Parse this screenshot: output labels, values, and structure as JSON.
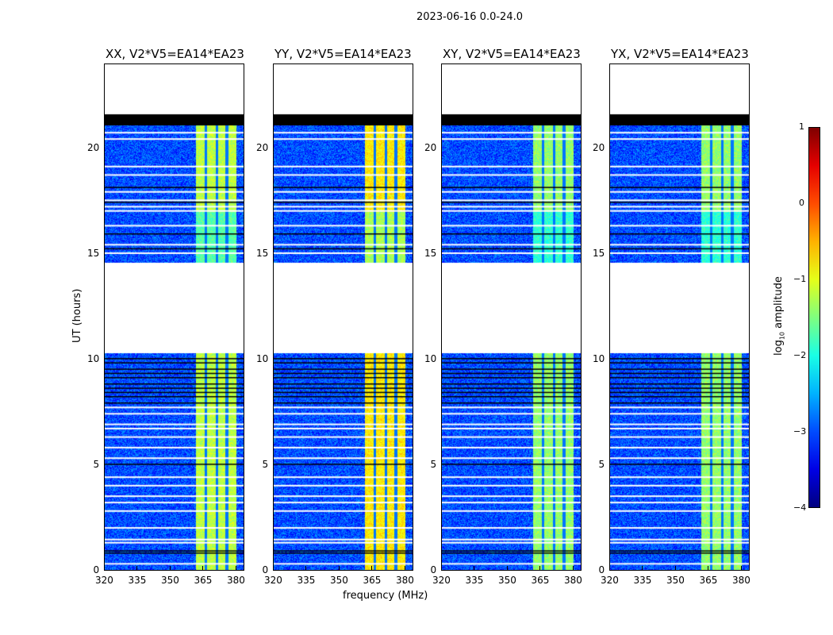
{
  "suptitle": "2023-06-16 0.0-24.0",
  "chart_data": {
    "type": "heatmap",
    "title": "2023-06-16 0.0-24.0",
    "xlabel": "frequency (MHz)",
    "ylabel": "UT (hours)",
    "xlim": [
      320,
      384
    ],
    "ylim": [
      0,
      24
    ],
    "xticks": [
      "320",
      "335",
      "350",
      "365",
      "380"
    ],
    "yticks": [
      "0",
      "5",
      "10",
      "15",
      "20"
    ],
    "panels": [
      {
        "title": "XX, V2*V5=EA14*EA23",
        "band_level": -1.2
      },
      {
        "title": "YY, V2*V5=EA14*EA23",
        "band_level": -0.8
      },
      {
        "title": "XY, V2*V5=EA14*EA23",
        "band_level": -1.4
      },
      {
        "title": "YX, V2*V5=EA14*EA23",
        "band_level": -1.4
      }
    ],
    "data_ranges_hours": [
      [
        0,
        10.3
      ],
      [
        14.6,
        21.1
      ]
    ],
    "flagged_ranges_hours": [
      [
        21.1,
        21.6
      ]
    ],
    "background_level": -3,
    "rfi_band_mhz": [
      361.5,
      380
    ],
    "colorbar": {
      "label": "log10 amplitude",
      "range": [
        -4,
        1
      ],
      "ticks": [
        "1",
        "0",
        "−1",
        "−2",
        "−3",
        "−4"
      ],
      "colormap": "jet"
    }
  }
}
